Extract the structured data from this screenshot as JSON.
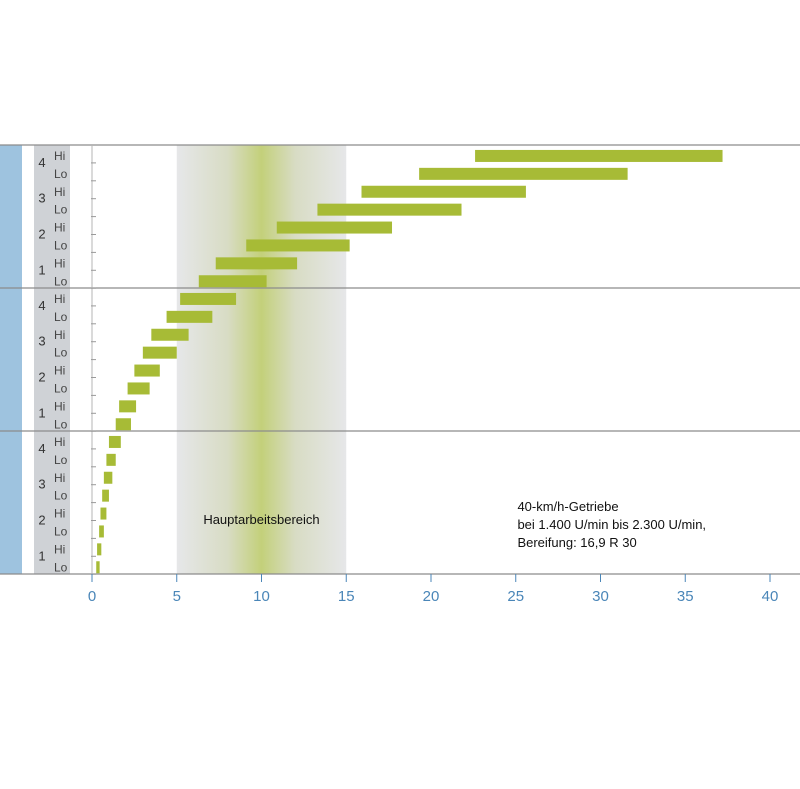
{
  "chart_data": {
    "type": "bar",
    "orientation": "horizontal-range",
    "xlim": [
      0,
      40
    ],
    "x_ticks": [
      0,
      5,
      10,
      15,
      20,
      25,
      30,
      35,
      40
    ],
    "highlight_band": {
      "from": 5,
      "to": 15,
      "label": "Hauptarbeitsbereich"
    },
    "annotation": [
      "40-km/h-Getriebe",
      "bei 1.400 U/min bis 2.300 U/min,",
      "Bereifung: 16,9 R 30"
    ],
    "colors": {
      "bar": "#a7bb36",
      "band": "#e3e5e7",
      "band_center": "#c3d07a",
      "side_bar": "#9ec3df",
      "gear_column": "#cfd2d6",
      "grid": "#8c8c8c",
      "ticks": "#4a86b8"
    },
    "groups": [
      {
        "gears": [
          {
            "group": "4",
            "rows": [
              {
                "label": "Hi",
                "start": 22.6,
                "end": 37.2
              },
              {
                "label": "Lo",
                "start": 19.3,
                "end": 31.6
              }
            ]
          },
          {
            "group": "3",
            "rows": [
              {
                "label": "Hi",
                "start": 15.9,
                "end": 25.6
              },
              {
                "label": "Lo",
                "start": 13.3,
                "end": 21.8
              }
            ]
          },
          {
            "group": "2",
            "rows": [
              {
                "label": "Hi",
                "start": 10.9,
                "end": 17.7
              },
              {
                "label": "Lo",
                "start": 9.1,
                "end": 15.2
              }
            ]
          },
          {
            "group": "1",
            "rows": [
              {
                "label": "Hi",
                "start": 7.3,
                "end": 12.1
              },
              {
                "label": "Lo",
                "start": 6.3,
                "end": 10.3
              }
            ]
          }
        ]
      },
      {
        "gears": [
          {
            "group": "4",
            "rows": [
              {
                "label": "Hi",
                "start": 5.2,
                "end": 8.5
              },
              {
                "label": "Lo",
                "start": 4.4,
                "end": 7.1
              }
            ]
          },
          {
            "group": "3",
            "rows": [
              {
                "label": "Hi",
                "start": 3.5,
                "end": 5.7
              },
              {
                "label": "Lo",
                "start": 3.0,
                "end": 5.0
              }
            ]
          },
          {
            "group": "2",
            "rows": [
              {
                "label": "Hi",
                "start": 2.5,
                "end": 4.0
              },
              {
                "label": "Lo",
                "start": 2.1,
                "end": 3.4
              }
            ]
          },
          {
            "group": "1",
            "rows": [
              {
                "label": "Hi",
                "start": 1.6,
                "end": 2.6
              },
              {
                "label": "Lo",
                "start": 1.4,
                "end": 2.3
              }
            ]
          }
        ]
      },
      {
        "gears": [
          {
            "group": "4",
            "rows": [
              {
                "label": "Hi",
                "start": 1.0,
                "end": 1.7
              },
              {
                "label": "Lo",
                "start": 0.85,
                "end": 1.4
              }
            ]
          },
          {
            "group": "3",
            "rows": [
              {
                "label": "Hi",
                "start": 0.7,
                "end": 1.2
              },
              {
                "label": "Lo",
                "start": 0.6,
                "end": 1.0
              }
            ]
          },
          {
            "group": "2",
            "rows": [
              {
                "label": "Hi",
                "start": 0.5,
                "end": 0.85
              },
              {
                "label": "Lo",
                "start": 0.42,
                "end": 0.7
              }
            ]
          },
          {
            "group": "1",
            "rows": [
              {
                "label": "Hi",
                "start": 0.3,
                "end": 0.55
              },
              {
                "label": "Lo",
                "start": 0.25,
                "end": 0.45
              }
            ]
          }
        ]
      }
    ]
  }
}
